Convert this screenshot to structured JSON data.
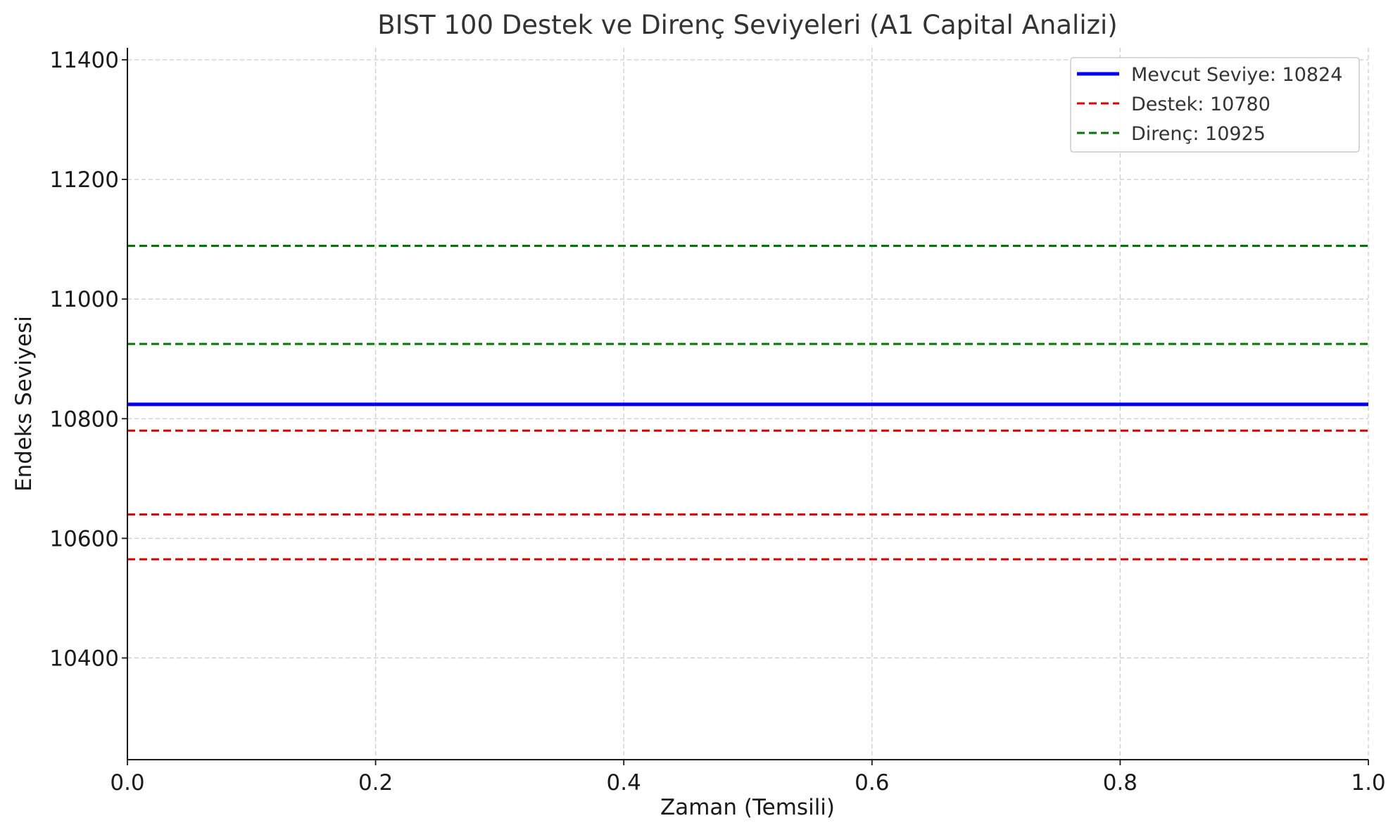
{
  "chart_data": {
    "type": "line",
    "title": "BIST 100 Destek ve Direnç Seviyeleri (A1 Capital Analizi)",
    "xlabel": "Zaman (Temsili)",
    "ylabel": "Endeks Seviyesi",
    "xlim": [
      0.0,
      1.0
    ],
    "ylim": [
      10230,
      11420
    ],
    "xticks": [
      "0.0",
      "0.2",
      "0.4",
      "0.6",
      "0.8",
      "1.0"
    ],
    "xtick_values": [
      0.0,
      0.2,
      0.4,
      0.6,
      0.8,
      1.0
    ],
    "yticks": [
      "10400",
      "10600",
      "10800",
      "11000",
      "11200",
      "11400"
    ],
    "ytick_values": [
      10400,
      10600,
      10800,
      11000,
      11200,
      11400
    ],
    "grid": true,
    "legend_position": "top-right",
    "series": [
      {
        "name": "Mevcut Seviye: 10824",
        "value": 10824,
        "style": "solid",
        "color": "#0000ee",
        "in_legend": true
      },
      {
        "name": "Destek: 10780",
        "value": 10780,
        "style": "dashed",
        "color": "#dd0000",
        "in_legend": true
      },
      {
        "value": 10640,
        "style": "dashed",
        "color": "#dd0000",
        "in_legend": false
      },
      {
        "value": 10565,
        "style": "dashed",
        "color": "#dd0000",
        "in_legend": false
      },
      {
        "name": "Direnç: 10925",
        "value": 10925,
        "style": "dashed",
        "color": "#007700",
        "in_legend": true
      },
      {
        "value": 11089,
        "style": "dashed",
        "color": "#007700",
        "in_legend": false
      }
    ]
  }
}
